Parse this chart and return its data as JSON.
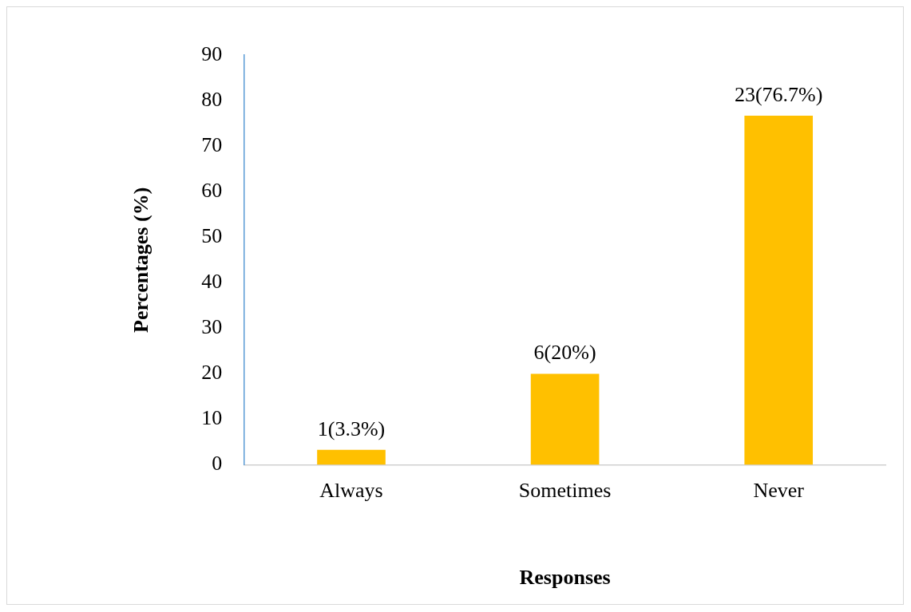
{
  "chart_data": {
    "type": "bar",
    "xlabel": "Responses",
    "ylabel": "Percentages (%)",
    "categories": [
      "Always",
      "Sometimes",
      "Never"
    ],
    "values": [
      3.3,
      20,
      76.7
    ],
    "value_labels": [
      "1(3.3%)",
      "6(20%)",
      "23(76.7%)"
    ],
    "color": "#ffc000",
    "ylim": [
      0,
      90
    ],
    "yticks": [
      0,
      10,
      20,
      30,
      40,
      50,
      60,
      70,
      80,
      90
    ],
    "grid": false,
    "legend": false
  }
}
